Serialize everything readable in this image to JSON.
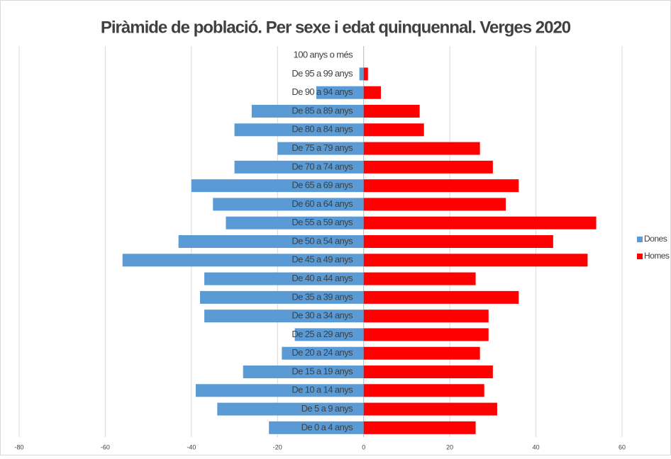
{
  "chart_data": {
    "type": "bar",
    "orientation": "horizontal",
    "stacked": true,
    "title": "Piràmide de població. Per sexe i edat quinquennal. Verges 2020",
    "categories": [
      "De 0 a 4 anys",
      "De 5 a 9 anys",
      "De 10 a 14 anys",
      "De 15 a 19 anys",
      "De 20 a 24 anys",
      "De 25 a 29 anys",
      "De 30 a 34 anys",
      "De 35 a 39 anys",
      "De 40 a 44 anys",
      "De 45 a 49 anys",
      "De 50 a 54 anys",
      "De 55 a 59 anys",
      "De 60 a 64 anys",
      "De 65 a 69 anys",
      "De 70 a 74 anys",
      "De 75 a 79 anys",
      "De 80 a 84 anys",
      "De 85 a 89 anys",
      "De 90 a 94 anys",
      "De 95 a 99 anys",
      "100 anys o més"
    ],
    "series": [
      {
        "name": "Dones",
        "color": "#5b9bd5",
        "values": [
          -22,
          -34,
          -39,
          -28,
          -19,
          -16,
          -37,
          -38,
          -37,
          -56,
          -43,
          -32,
          -35,
          -40,
          -30,
          -20,
          -30,
          -26,
          -11,
          -1,
          0
        ]
      },
      {
        "name": "Homes",
        "color": "#ff0000",
        "values": [
          26,
          31,
          28,
          30,
          27,
          29,
          29,
          36,
          26,
          52,
          44,
          54,
          33,
          36,
          30,
          27,
          14,
          13,
          4,
          1,
          0
        ]
      }
    ],
    "xlim": [
      -80,
      60
    ],
    "xticks": [
      -80,
      -60,
      -40,
      -20,
      0,
      20,
      40,
      60
    ],
    "grid": true,
    "legend": "right"
  }
}
